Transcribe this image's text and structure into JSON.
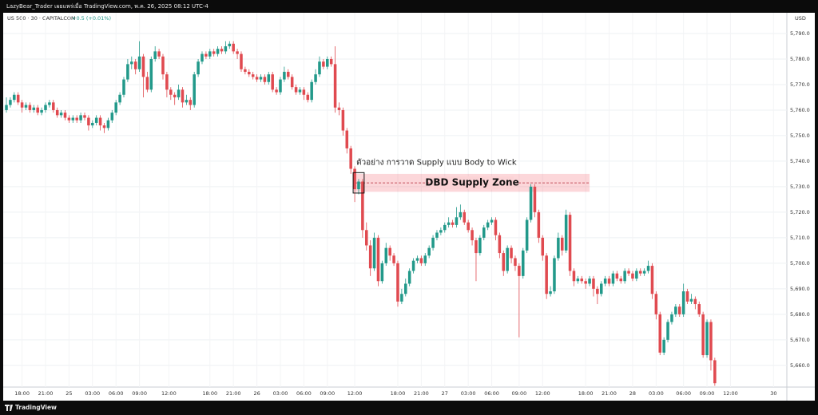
{
  "header": {
    "published": "LazyBear_Trader เผยแพร่เมื่อ TradingView.com, พ.ค. 26, 2025 08:12 UTC-4",
    "symbol": "US 500 · 30 · CAPITALCOM",
    "change": "+0.5 (+0.01%)",
    "currency": "USD",
    "brand": "TradingView"
  },
  "chart_data": {
    "type": "candlestick",
    "up_color": "#22998a",
    "down_color": "#e04a50",
    "annotation": "ตัวอย่าง การวาด Supply แบบ Body to Wick",
    "zone": {
      "label": "DBD Supply Zone",
      "top": 5735,
      "bottom": 5728,
      "line": 5731.5,
      "start": 89,
      "end": 149
    },
    "box": {
      "start": 89,
      "end": 91,
      "top": 5735.5,
      "bottom": 5727.5
    },
    "xlim": [
      0,
      199.4
    ],
    "ylim": [
      5651.5,
      5797.5
    ],
    "grid": true,
    "xticks": [
      {
        "value": 4,
        "label": "18:00"
      },
      {
        "value": 10,
        "label": "21:00"
      },
      {
        "value": 16,
        "label": "25"
      },
      {
        "value": 22,
        "label": "03:00"
      },
      {
        "value": 28,
        "label": "06:00"
      },
      {
        "value": 34,
        "label": "09:00"
      },
      {
        "value": 41.5,
        "label": "12:00"
      },
      {
        "value": 52,
        "label": "18:00"
      },
      {
        "value": 58,
        "label": "21:00"
      },
      {
        "value": 64,
        "label": "26"
      },
      {
        "value": 70,
        "label": "03:00"
      },
      {
        "value": 76,
        "label": "06:00"
      },
      {
        "value": 82,
        "label": "09:00"
      },
      {
        "value": 89,
        "label": "12:00"
      },
      {
        "value": 100,
        "label": "18:00"
      },
      {
        "value": 106,
        "label": "21:00"
      },
      {
        "value": 112,
        "label": "27"
      },
      {
        "value": 118,
        "label": "03:00"
      },
      {
        "value": 124,
        "label": "06:00"
      },
      {
        "value": 131,
        "label": "09:00"
      },
      {
        "value": 137,
        "label": "12:00"
      },
      {
        "value": 148,
        "label": "18:00"
      },
      {
        "value": 154,
        "label": "21:00"
      },
      {
        "value": 160,
        "label": "28"
      },
      {
        "value": 166,
        "label": "03:00"
      },
      {
        "value": 173,
        "label": "06:00"
      },
      {
        "value": 179,
        "label": "09:00"
      },
      {
        "value": 185,
        "label": "12:00"
      },
      {
        "value": 196,
        "label": "30"
      }
    ],
    "yticks": [
      {
        "value": 5660,
        "label": "5,660.0"
      },
      {
        "value": 5670,
        "label": "5,670.0"
      },
      {
        "value": 5680,
        "label": "5,680.0"
      },
      {
        "value": 5690,
        "label": "5,690.0"
      },
      {
        "value": 5700,
        "label": "5,700.0"
      },
      {
        "value": 5710,
        "label": "5,710.0"
      },
      {
        "value": 5720,
        "label": "5,720.0"
      },
      {
        "value": 5730,
        "label": "5,730.0"
      },
      {
        "value": 5740,
        "label": "5,740.0"
      },
      {
        "value": 5750,
        "label": "5,750.0"
      },
      {
        "value": 5760,
        "label": "5,760.0"
      },
      {
        "value": 5770,
        "label": "5,770.0"
      },
      {
        "value": 5780,
        "label": "5,780.0"
      },
      {
        "value": 5790,
        "label": "5,790.0"
      }
    ],
    "ohlc": [
      [
        5760,
        5765,
        5759,
        5762
      ],
      [
        5762,
        5765,
        5761,
        5764
      ],
      [
        5764,
        5767,
        5763,
        5766
      ],
      [
        5766,
        5767,
        5762,
        5763
      ],
      [
        5763,
        5764,
        5759,
        5761
      ],
      [
        5761,
        5763,
        5760,
        5762
      ],
      [
        5762,
        5763,
        5759,
        5760
      ],
      [
        5760,
        5762,
        5759,
        5761
      ],
      [
        5761,
        5762,
        5758,
        5759
      ],
      [
        5759,
        5761,
        5758,
        5760
      ],
      [
        5760,
        5763,
        5759,
        5762
      ],
      [
        5762,
        5764,
        5761,
        5763
      ],
      [
        5763,
        5764,
        5759,
        5760
      ],
      [
        5760,
        5761,
        5757,
        5758
      ],
      [
        5758,
        5760,
        5757,
        5759
      ],
      [
        5759,
        5760,
        5756,
        5757
      ],
      [
        5757,
        5758,
        5755,
        5756
      ],
      [
        5756,
        5758,
        5755,
        5757
      ],
      [
        5757,
        5758,
        5755,
        5756
      ],
      [
        5756,
        5759,
        5755,
        5758
      ],
      [
        5758,
        5759,
        5756,
        5757
      ],
      [
        5757,
        5758,
        5752,
        5754
      ],
      [
        5754,
        5756,
        5753,
        5755
      ],
      [
        5755,
        5758,
        5754,
        5757
      ],
      [
        5757,
        5758,
        5752,
        5754
      ],
      [
        5754,
        5755,
        5751,
        5753
      ],
      [
        5753,
        5757,
        5752,
        5756
      ],
      [
        5756,
        5760,
        5755,
        5759
      ],
      [
        5759,
        5764,
        5758,
        5763
      ],
      [
        5763,
        5767,
        5762,
        5766
      ],
      [
        5766,
        5773,
        5765,
        5772
      ],
      [
        5772,
        5780,
        5771,
        5778
      ],
      [
        5778,
        5781,
        5776,
        5779
      ],
      [
        5779,
        5780,
        5774,
        5776
      ],
      [
        5776,
        5787,
        5775,
        5781
      ],
      [
        5781,
        5782,
        5765,
        5773
      ],
      [
        5773,
        5775,
        5767,
        5768
      ],
      [
        5768,
        5781,
        5767,
        5780
      ],
      [
        5780,
        5785,
        5779,
        5783
      ],
      [
        5783,
        5784,
        5780,
        5781
      ],
      [
        5781,
        5782,
        5772,
        5774
      ],
      [
        5774,
        5775,
        5765,
        5768
      ],
      [
        5768,
        5769,
        5764,
        5766
      ],
      [
        5766,
        5767,
        5762,
        5765
      ],
      [
        5765,
        5770,
        5764,
        5768
      ],
      [
        5768,
        5769,
        5761,
        5763
      ],
      [
        5763,
        5766,
        5762,
        5764
      ],
      [
        5764,
        5765,
        5760,
        5762
      ],
      [
        5762,
        5775,
        5761,
        5774
      ],
      [
        5774,
        5780,
        5773,
        5779
      ],
      [
        5779,
        5783,
        5778,
        5782
      ],
      [
        5782,
        5783,
        5780,
        5781
      ],
      [
        5781,
        5784,
        5780,
        5783
      ],
      [
        5783,
        5784,
        5781,
        5782
      ],
      [
        5782,
        5785,
        5781,
        5784
      ],
      [
        5784,
        5785,
        5782,
        5783
      ],
      [
        5783,
        5787,
        5782,
        5785
      ],
      [
        5785,
        5787,
        5784,
        5786
      ],
      [
        5786,
        5787,
        5782,
        5783
      ],
      [
        5783,
        5784,
        5780,
        5782
      ],
      [
        5782,
        5783,
        5775,
        5776
      ],
      [
        5776,
        5777,
        5774,
        5775
      ],
      [
        5775,
        5776,
        5773,
        5774
      ],
      [
        5774,
        5775,
        5772,
        5773
      ],
      [
        5773,
        5774,
        5771,
        5772
      ],
      [
        5772,
        5774,
        5771,
        5773
      ],
      [
        5773,
        5774,
        5770,
        5771
      ],
      [
        5771,
        5775,
        5770,
        5774
      ],
      [
        5774,
        5775,
        5767,
        5768
      ],
      [
        5768,
        5769,
        5766,
        5767
      ],
      [
        5767,
        5773,
        5766,
        5772
      ],
      [
        5772,
        5777,
        5771,
        5775
      ],
      [
        5775,
        5776,
        5772,
        5773
      ],
      [
        5773,
        5774,
        5768,
        5769
      ],
      [
        5769,
        5770,
        5766,
        5767
      ],
      [
        5767,
        5769,
        5766,
        5768
      ],
      [
        5768,
        5769,
        5764,
        5766
      ],
      [
        5766,
        5767,
        5763,
        5764
      ],
      [
        5764,
        5772,
        5763,
        5771
      ],
      [
        5771,
        5776,
        5770,
        5774
      ],
      [
        5774,
        5781,
        5773,
        5779
      ],
      [
        5779,
        5780,
        5776,
        5777
      ],
      [
        5777,
        5781,
        5776,
        5780
      ],
      [
        5780,
        5781,
        5777,
        5778
      ],
      [
        5778,
        5785,
        5759,
        5761
      ],
      [
        5761,
        5763,
        5758,
        5760
      ],
      [
        5760,
        5761,
        5750,
        5752
      ],
      [
        5752,
        5753,
        5743,
        5745
      ],
      [
        5745,
        5746,
        5735,
        5737
      ],
      [
        5737,
        5738,
        5724,
        5729
      ],
      [
        5729,
        5733,
        5727,
        5732
      ],
      [
        5732,
        5733,
        5710,
        5713
      ],
      [
        5713,
        5716,
        5705,
        5707
      ],
      [
        5707,
        5709,
        5695,
        5698
      ],
      [
        5698,
        5712,
        5697,
        5710
      ],
      [
        5710,
        5711,
        5691,
        5693
      ],
      [
        5693,
        5701,
        5692,
        5700
      ],
      [
        5700,
        5708,
        5699,
        5706
      ],
      [
        5706,
        5707,
        5701,
        5703
      ],
      [
        5703,
        5704,
        5699,
        5700
      ],
      [
        5700,
        5701,
        5683,
        5685
      ],
      [
        5685,
        5690,
        5684,
        5688
      ],
      [
        5688,
        5694,
        5687,
        5692
      ],
      [
        5692,
        5698,
        5691,
        5697
      ],
      [
        5697,
        5702,
        5696,
        5701
      ],
      [
        5701,
        5703,
        5700,
        5702
      ],
      [
        5702,
        5703,
        5699,
        5700
      ],
      [
        5700,
        5704,
        5699,
        5703
      ],
      [
        5703,
        5707,
        5702,
        5706
      ],
      [
        5706,
        5711,
        5705,
        5710
      ],
      [
        5710,
        5713,
        5709,
        5712
      ],
      [
        5712,
        5714,
        5711,
        5713
      ],
      [
        5713,
        5716,
        5712,
        5715
      ],
      [
        5715,
        5718,
        5714,
        5716
      ],
      [
        5716,
        5717,
        5714,
        5715
      ],
      [
        5715,
        5722,
        5714,
        5718
      ],
      [
        5718,
        5723,
        5717,
        5720
      ],
      [
        5720,
        5721,
        5715,
        5716
      ],
      [
        5716,
        5717,
        5712,
        5713
      ],
      [
        5713,
        5714,
        5707,
        5709
      ],
      [
        5709,
        5710,
        5693,
        5704
      ],
      [
        5704,
        5711,
        5703,
        5710
      ],
      [
        5710,
        5715,
        5709,
        5714
      ],
      [
        5714,
        5717,
        5713,
        5716
      ],
      [
        5716,
        5718,
        5715,
        5717
      ],
      [
        5717,
        5718,
        5709,
        5711
      ],
      [
        5711,
        5712,
        5702,
        5704
      ],
      [
        5704,
        5705,
        5695,
        5697
      ],
      [
        5697,
        5707,
        5696,
        5706
      ],
      [
        5706,
        5707,
        5700,
        5702
      ],
      [
        5702,
        5703,
        5697,
        5699
      ],
      [
        5699,
        5700,
        5671,
        5695
      ],
      [
        5695,
        5706,
        5694,
        5705
      ],
      [
        5705,
        5718,
        5704,
        5717
      ],
      [
        5717,
        5731,
        5716,
        5730
      ],
      [
        5730,
        5731,
        5718,
        5720
      ],
      [
        5720,
        5721,
        5708,
        5710
      ],
      [
        5710,
        5711,
        5701,
        5703
      ],
      [
        5703,
        5704,
        5686,
        5688
      ],
      [
        5688,
        5691,
        5687,
        5689
      ],
      [
        5689,
        5703,
        5688,
        5702
      ],
      [
        5702,
        5712,
        5701,
        5710
      ],
      [
        5710,
        5711,
        5703,
        5705
      ],
      [
        5705,
        5721,
        5704,
        5719
      ],
      [
        5719,
        5720,
        5695,
        5697
      ],
      [
        5697,
        5698,
        5691,
        5693
      ],
      [
        5693,
        5695,
        5692,
        5694
      ],
      [
        5694,
        5695,
        5692,
        5693
      ],
      [
        5693,
        5694,
        5690,
        5692
      ],
      [
        5692,
        5695,
        5691,
        5694
      ],
      [
        5694,
        5695,
        5687,
        5690
      ],
      [
        5690,
        5691,
        5684,
        5688
      ],
      [
        5688,
        5693,
        5687,
        5692
      ],
      [
        5692,
        5695,
        5691,
        5694
      ],
      [
        5694,
        5695,
        5691,
        5692
      ],
      [
        5692,
        5697,
        5691,
        5696
      ],
      [
        5696,
        5697,
        5693,
        5694
      ],
      [
        5694,
        5695,
        5692,
        5693
      ],
      [
        5693,
        5698,
        5692,
        5697
      ],
      [
        5697,
        5698,
        5695,
        5696
      ],
      [
        5696,
        5697,
        5693,
        5694
      ],
      [
        5694,
        5698,
        5693,
        5697
      ],
      [
        5697,
        5698,
        5695,
        5696
      ],
      [
        5696,
        5698,
        5695,
        5697
      ],
      [
        5697,
        5701,
        5696,
        5699
      ],
      [
        5699,
        5700,
        5686,
        5688
      ],
      [
        5688,
        5689,
        5678,
        5680
      ],
      [
        5680,
        5681,
        5664,
        5665
      ],
      [
        5665,
        5671,
        5664,
        5670
      ],
      [
        5670,
        5678,
        5669,
        5677
      ],
      [
        5677,
        5681,
        5676,
        5680
      ],
      [
        5680,
        5684,
        5679,
        5683
      ],
      [
        5683,
        5684,
        5679,
        5680
      ],
      [
        5680,
        5692,
        5679,
        5689
      ],
      [
        5689,
        5690,
        5684,
        5685
      ],
      [
        5685,
        5688,
        5684,
        5686
      ],
      [
        5686,
        5687,
        5682,
        5684
      ],
      [
        5684,
        5685,
        5679,
        5680
      ],
      [
        5680,
        5681,
        5663,
        5664
      ],
      [
        5664,
        5678,
        5663,
        5677
      ],
      [
        5677,
        5678,
        5658,
        5662
      ],
      [
        5662,
        5663,
        5652,
        5653
      ]
    ]
  }
}
